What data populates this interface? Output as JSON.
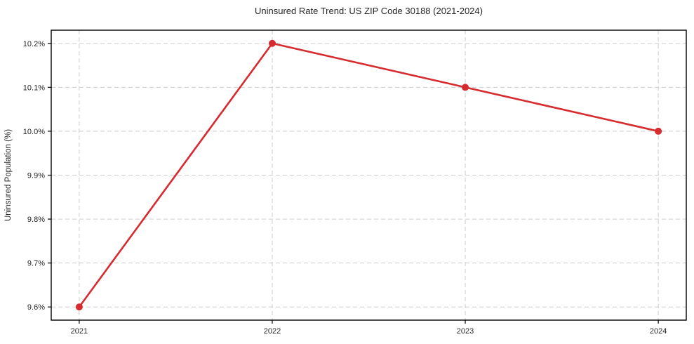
{
  "figure": {
    "background": "#ffffff",
    "text_color": "#262626",
    "frame_color": "#000000"
  },
  "chart_data": {
    "type": "line",
    "title": "Uninsured Rate Trend: US ZIP Code 30188 (2021-2024)",
    "xlabel": "",
    "ylabel": "Uninsured Population (%)",
    "x": [
      2021,
      2022,
      2023,
      2024
    ],
    "x_tick_labels": [
      "2021",
      "2022",
      "2023",
      "2024"
    ],
    "series": [
      {
        "name": "uninsured-rate",
        "values": [
          9.6,
          10.2,
          10.1,
          10.0
        ],
        "color": "#d62b2f",
        "marker": "circle",
        "line_width": 2.6,
        "marker_radius": 5
      }
    ],
    "y_ticks": [
      9.6,
      9.7,
      9.8,
      9.9,
      10.0,
      10.1,
      10.2
    ],
    "y_tick_labels": [
      "9.6%",
      "9.7%",
      "9.8%",
      "9.9%",
      "10.0%",
      "10.1%",
      "10.2%"
    ],
    "ylim": [
      9.57,
      10.23
    ],
    "xlim": [
      2020.855,
      2024.145
    ],
    "grid": true,
    "grid_style": "dashed",
    "grid_color": "#cccccc",
    "legend": false
  }
}
